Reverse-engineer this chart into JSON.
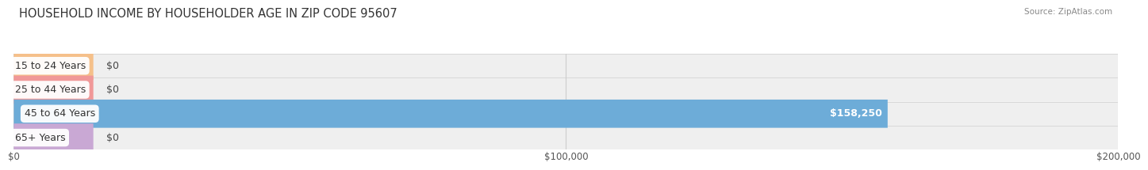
{
  "title": "HOUSEHOLD INCOME BY HOUSEHOLDER AGE IN ZIP CODE 95607",
  "source": "Source: ZipAtlas.com",
  "categories": [
    "15 to 24 Years",
    "25 to 44 Years",
    "45 to 64 Years",
    "65+ Years"
  ],
  "values": [
    0,
    0,
    158250,
    0
  ],
  "bar_colors": [
    "#f5c08a",
    "#f09898",
    "#6dacd8",
    "#c9a8d4"
  ],
  "xlim": [
    0,
    200000
  ],
  "xtick_values": [
    0,
    100000,
    200000
  ],
  "xtick_labels": [
    "$0",
    "$100,000",
    "$200,000"
  ],
  "value_label_nonzero": "$158,250",
  "value_label_zero": "$0",
  "bar_height": 0.62,
  "background_color": "#ffffff",
  "row_bg_color": "#efefef",
  "title_fontsize": 10.5,
  "source_fontsize": 7.5,
  "label_fontsize": 9,
  "tick_fontsize": 8.5,
  "row_sep_color": "#d8d8d8"
}
